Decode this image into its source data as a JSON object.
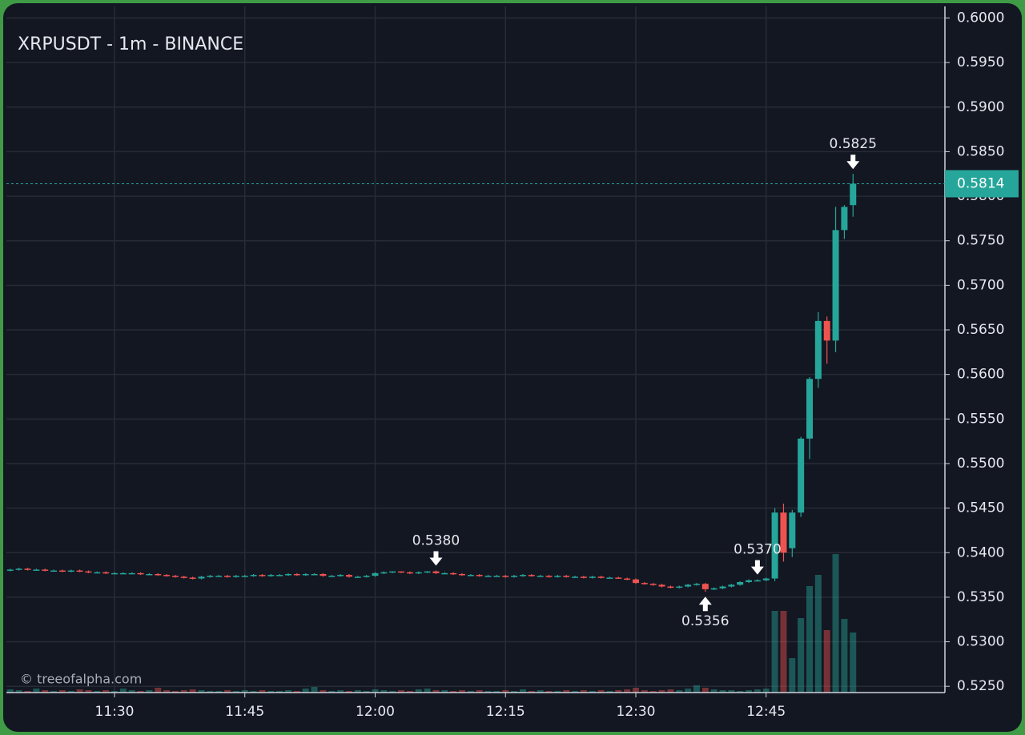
{
  "chart_data": {
    "type": "candlestick",
    "title": "XRPUSDT - 1m - BINANCE",
    "watermark": "© treeofalpha.com",
    "colors": {
      "up": "#26a69a",
      "down": "#ef5350"
    },
    "grid": true,
    "categories": [
      null,
      null,
      null,
      null,
      null,
      null,
      null,
      null,
      null,
      null,
      null,
      null,
      "11:30",
      null,
      null,
      null,
      null,
      null,
      null,
      null,
      null,
      null,
      null,
      null,
      null,
      null,
      null,
      "11:45",
      null,
      null,
      null,
      null,
      null,
      null,
      null,
      null,
      null,
      null,
      null,
      null,
      null,
      null,
      "12:00",
      null,
      null,
      null,
      null,
      null,
      null,
      null,
      null,
      null,
      null,
      null,
      null,
      null,
      null,
      "12:15",
      null,
      null,
      null,
      null,
      null,
      null,
      null,
      null,
      null,
      null,
      null,
      null,
      null,
      null,
      "12:30",
      null,
      null,
      null,
      null,
      null,
      null,
      null,
      null,
      null,
      null,
      null,
      null,
      null,
      null,
      "12:45",
      null,
      null,
      null,
      null,
      null,
      null,
      null,
      null,
      null,
      null
    ],
    "open": [
      0.538,
      0.5381,
      0.5382,
      0.5381,
      0.5381,
      0.538,
      0.538,
      0.5379,
      0.538,
      0.5379,
      0.5378,
      0.5378,
      0.5377,
      0.5377,
      0.5377,
      0.5377,
      0.5376,
      0.5376,
      0.5375,
      0.5374,
      0.5373,
      0.5372,
      0.5371,
      0.5373,
      0.5374,
      0.5374,
      0.5373,
      0.5374,
      0.5374,
      0.5375,
      0.5374,
      0.5375,
      0.5375,
      0.5376,
      0.5375,
      0.5376,
      0.5376,
      0.5374,
      0.5374,
      0.5375,
      0.5373,
      0.5373,
      0.5374,
      0.5377,
      0.5378,
      0.5379,
      0.5378,
      0.5377,
      0.5378,
      0.5379,
      0.5377,
      0.5377,
      0.5376,
      0.5375,
      0.5375,
      0.5374,
      0.5374,
      0.5374,
      0.5373,
      0.5374,
      0.5375,
      0.5374,
      0.5374,
      0.5373,
      0.5374,
      0.5373,
      0.5373,
      0.5372,
      0.5373,
      0.5372,
      0.5372,
      0.5371,
      0.537,
      0.5366,
      0.5365,
      0.5364,
      0.5362,
      0.5361,
      0.5362,
      0.5364,
      0.5365,
      0.5359,
      0.536,
      0.5362,
      0.5364,
      0.5367,
      0.5369,
      0.5369,
      0.5371,
      0.5445,
      0.5405,
      0.5445,
      0.5528,
      0.5595,
      0.566,
      0.5638,
      0.5762,
      0.579
    ],
    "high": [
      0.5382,
      0.5383,
      0.5383,
      0.5382,
      0.5382,
      0.5381,
      0.5381,
      0.5381,
      0.5381,
      0.538,
      0.5379,
      0.5379,
      0.5378,
      0.5378,
      0.5378,
      0.5378,
      0.5377,
      0.5377,
      0.5376,
      0.5375,
      0.5374,
      0.5373,
      0.5374,
      0.5375,
      0.5375,
      0.5375,
      0.5375,
      0.5375,
      0.5376,
      0.5376,
      0.5376,
      0.5376,
      0.5377,
      0.5377,
      0.5377,
      0.5377,
      0.5377,
      0.5375,
      0.5376,
      0.5376,
      0.5374,
      0.5375,
      0.5378,
      0.5379,
      0.5379,
      0.5379,
      0.5379,
      0.5379,
      0.5379,
      0.538,
      0.5378,
      0.5378,
      0.5377,
      0.5376,
      0.5376,
      0.5375,
      0.5375,
      0.5375,
      0.5375,
      0.5376,
      0.5376,
      0.5375,
      0.5375,
      0.5375,
      0.5375,
      0.5374,
      0.5374,
      0.5374,
      0.5374,
      0.5373,
      0.5373,
      0.5372,
      0.5371,
      0.5367,
      0.5366,
      0.5365,
      0.5363,
      0.5363,
      0.5365,
      0.5366,
      0.5366,
      0.5361,
      0.5363,
      0.5365,
      0.5368,
      0.537,
      0.537,
      0.5372,
      0.545,
      0.5455,
      0.5448,
      0.553,
      0.5597,
      0.567,
      0.5665,
      0.5788,
      0.579,
      0.5825
    ],
    "low": [
      0.5379,
      0.538,
      0.538,
      0.538,
      0.5379,
      0.5379,
      0.5378,
      0.5378,
      0.5378,
      0.5377,
      0.5377,
      0.5376,
      0.5376,
      0.5376,
      0.5376,
      0.5375,
      0.5375,
      0.5374,
      0.5373,
      0.5372,
      0.5371,
      0.537,
      0.537,
      0.5372,
      0.5373,
      0.5372,
      0.5372,
      0.5373,
      0.5373,
      0.5373,
      0.5373,
      0.5374,
      0.5374,
      0.5374,
      0.5374,
      0.5375,
      0.5373,
      0.5373,
      0.5373,
      0.5372,
      0.5372,
      0.5372,
      0.5373,
      0.5376,
      0.5377,
      0.5377,
      0.5376,
      0.5376,
      0.5377,
      0.5376,
      0.5376,
      0.5375,
      0.5374,
      0.5374,
      0.5373,
      0.5373,
      0.5373,
      0.5372,
      0.5372,
      0.5373,
      0.5373,
      0.5373,
      0.5372,
      0.5372,
      0.5372,
      0.5372,
      0.5371,
      0.5371,
      0.5371,
      0.5371,
      0.5371,
      0.5369,
      0.5365,
      0.5364,
      0.5363,
      0.5361,
      0.536,
      0.536,
      0.5361,
      0.5363,
      0.5356,
      0.5358,
      0.5359,
      0.5361,
      0.5363,
      0.5366,
      0.5368,
      0.5368,
      0.5368,
      0.539,
      0.5395,
      0.544,
      0.5505,
      0.5585,
      0.5612,
      0.5625,
      0.5752,
      0.5777
    ],
    "close": [
      0.5381,
      0.5382,
      0.5381,
      0.5381,
      0.538,
      0.538,
      0.5379,
      0.538,
      0.5379,
      0.5378,
      0.5378,
      0.5377,
      0.5377,
      0.5377,
      0.5377,
      0.5376,
      0.5376,
      0.5375,
      0.5374,
      0.5373,
      0.5372,
      0.5371,
      0.5373,
      0.5374,
      0.5374,
      0.5373,
      0.5374,
      0.5374,
      0.5375,
      0.5374,
      0.5375,
      0.5375,
      0.5376,
      0.5375,
      0.5376,
      0.5376,
      0.5374,
      0.5374,
      0.5375,
      0.5373,
      0.5373,
      0.5374,
      0.5377,
      0.5378,
      0.5379,
      0.5378,
      0.5377,
      0.5378,
      0.5379,
      0.5377,
      0.5377,
      0.5376,
      0.5375,
      0.5375,
      0.5374,
      0.5374,
      0.5374,
      0.5373,
      0.5374,
      0.5375,
      0.5374,
      0.5374,
      0.5373,
      0.5374,
      0.5373,
      0.5373,
      0.5372,
      0.5373,
      0.5372,
      0.5372,
      0.5371,
      0.537,
      0.5366,
      0.5365,
      0.5364,
      0.5362,
      0.5361,
      0.5362,
      0.5364,
      0.5365,
      0.5359,
      0.536,
      0.5362,
      0.5364,
      0.5367,
      0.5369,
      0.5369,
      0.5371,
      0.5445,
      0.54,
      0.5445,
      0.5528,
      0.5595,
      0.566,
      0.5638,
      0.5762,
      0.5788,
      0.5814
    ],
    "volume": [
      4,
      3,
      2,
      5,
      3,
      2,
      3,
      2,
      4,
      3,
      2,
      3,
      2,
      5,
      3,
      2,
      3,
      6,
      3,
      2,
      3,
      4,
      3,
      2,
      2,
      3,
      2,
      3,
      2,
      3,
      2,
      2,
      3,
      2,
      5,
      7,
      3,
      2,
      3,
      2,
      3,
      2,
      4,
      3,
      2,
      3,
      2,
      4,
      5,
      3,
      3,
      2,
      3,
      2,
      3,
      2,
      2,
      3,
      2,
      4,
      2,
      3,
      2,
      2,
      3,
      2,
      3,
      2,
      3,
      2,
      3,
      4,
      6,
      3,
      2,
      3,
      4,
      3,
      5,
      9,
      6,
      4,
      3,
      3,
      2,
      3,
      4,
      5,
      102,
      102,
      43,
      93,
      133,
      147,
      78,
      173,
      92,
      75
    ],
    "ylim": [
      0.5243,
      0.6013
    ],
    "yticks": [
      {
        "value": 0.525,
        "label": "0.5250"
      },
      {
        "value": 0.53,
        "label": "0.5300"
      },
      {
        "value": 0.535,
        "label": "0.5350"
      },
      {
        "value": 0.54,
        "label": "0.5400"
      },
      {
        "value": 0.545,
        "label": "0.5450"
      },
      {
        "value": 0.55,
        "label": "0.5500"
      },
      {
        "value": 0.555,
        "label": "0.5550"
      },
      {
        "value": 0.56,
        "label": "0.5600"
      },
      {
        "value": 0.565,
        "label": "0.5650"
      },
      {
        "value": 0.57,
        "label": "0.5700"
      },
      {
        "value": 0.575,
        "label": "0.5750"
      },
      {
        "value": 0.58,
        "label": "0.5800"
      },
      {
        "value": 0.585,
        "label": "0.5850"
      },
      {
        "value": 0.59,
        "label": "0.5900"
      },
      {
        "value": 0.595,
        "label": "0.5950"
      },
      {
        "value": 0.6,
        "label": "0.6000"
      }
    ],
    "annotations": [
      {
        "value": 0.5825,
        "label": "0.5825"
      },
      {
        "value": 0.538,
        "label": "0.5380"
      },
      {
        "value": 0.537,
        "label": "0.5370"
      },
      {
        "value": 0.5356,
        "label": "0.5356"
      }
    ]
  }
}
